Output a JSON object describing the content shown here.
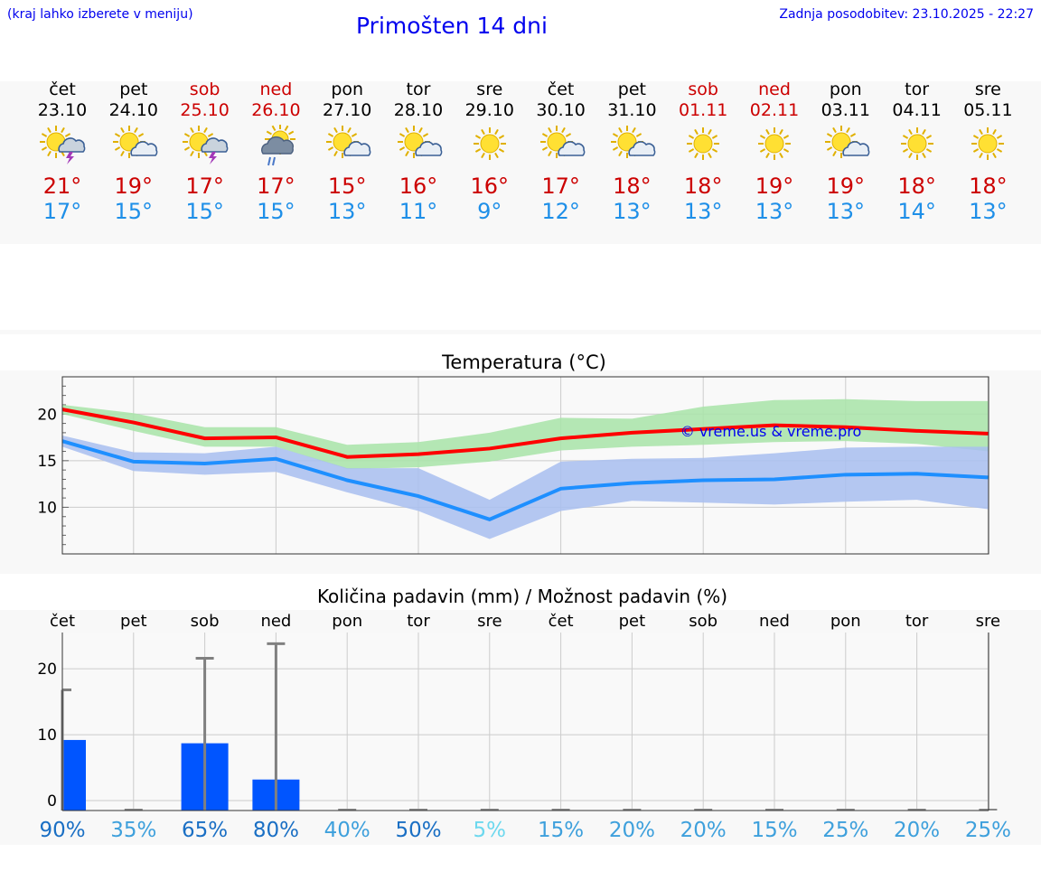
{
  "header": {
    "hint": "(kraj lahko izberete v meniju)",
    "title": "Primošten 14 dni",
    "updated": "Zadnja posodobitev: 23.10.2025 - 22:27"
  },
  "days": [
    {
      "name": "čet",
      "date": "23.10",
      "weekend": false,
      "icon": "sun-cloud-thunder-icon",
      "tmax": "21°",
      "tmin": "17°"
    },
    {
      "name": "pet",
      "date": "24.10",
      "weekend": false,
      "icon": "sun-cloud-icon",
      "tmax": "19°",
      "tmin": "15°"
    },
    {
      "name": "sob",
      "date": "25.10",
      "weekend": true,
      "icon": "sun-cloud-thunder-icon",
      "tmax": "17°",
      "tmin": "15°"
    },
    {
      "name": "ned",
      "date": "26.10",
      "weekend": true,
      "icon": "sun-cloud-rain-icon",
      "tmax": "17°",
      "tmin": "15°"
    },
    {
      "name": "pon",
      "date": "27.10",
      "weekend": false,
      "icon": "sun-cloud-icon",
      "tmax": "15°",
      "tmin": "13°"
    },
    {
      "name": "tor",
      "date": "28.10",
      "weekend": false,
      "icon": "sun-cloud-icon",
      "tmax": "16°",
      "tmin": "11°"
    },
    {
      "name": "sre",
      "date": "29.10",
      "weekend": false,
      "icon": "sun-icon",
      "tmax": "16°",
      "tmin": "9°"
    },
    {
      "name": "čet",
      "date": "30.10",
      "weekend": false,
      "icon": "sun-cloud-icon",
      "tmax": "17°",
      "tmin": "12°"
    },
    {
      "name": "pet",
      "date": "31.10",
      "weekend": false,
      "icon": "sun-cloud-icon",
      "tmax": "18°",
      "tmin": "13°"
    },
    {
      "name": "sob",
      "date": "01.11",
      "weekend": true,
      "icon": "sun-icon",
      "tmax": "18°",
      "tmin": "13°"
    },
    {
      "name": "ned",
      "date": "02.11",
      "weekend": true,
      "icon": "sun-icon",
      "tmax": "19°",
      "tmin": "13°"
    },
    {
      "name": "pon",
      "date": "03.11",
      "weekend": false,
      "icon": "sun-cloud-icon",
      "tmax": "19°",
      "tmin": "13°"
    },
    {
      "name": "tor",
      "date": "04.11",
      "weekend": false,
      "icon": "sun-icon",
      "tmax": "18°",
      "tmin": "14°"
    },
    {
      "name": "sre",
      "date": "05.11",
      "weekend": false,
      "icon": "sun-icon",
      "tmax": "18°",
      "tmin": "13°"
    }
  ],
  "colors": {
    "max_line": "#ff0000",
    "max_band": "#a8e4a8",
    "min_line": "#1e8fff",
    "min_band": "#a8bef0",
    "bar": "#0055ff",
    "whisker": "#808080",
    "weekend": "#cc0000",
    "watermark": "#0000ee"
  },
  "chart_data": [
    {
      "type": "line",
      "title": "Temperatura (°C)",
      "ylim": [
        5,
        24
      ],
      "yticks": [
        10,
        15,
        20
      ],
      "grid": true,
      "watermark": "© vreme.us & vreme.pro",
      "series": [
        {
          "values": [
            20.5,
            19.1,
            17.4,
            17.5,
            15.4,
            15.7,
            16.3,
            17.4,
            18.0,
            18.4,
            18.8,
            18.6,
            18.2,
            17.9
          ],
          "band_low": [
            20.0,
            18.2,
            16.5,
            16.5,
            14.1,
            14.3,
            14.9,
            16.1,
            16.5,
            16.7,
            17.0,
            17.1,
            16.8,
            16.0
          ],
          "band_high": [
            21.0,
            20.1,
            18.6,
            18.6,
            16.7,
            17.0,
            18.0,
            19.6,
            19.5,
            20.8,
            21.5,
            21.6,
            21.4,
            21.4
          ]
        },
        {
          "values": [
            17.1,
            14.9,
            14.7,
            15.2,
            12.9,
            11.2,
            8.7,
            12.0,
            12.6,
            12.9,
            13.0,
            13.5,
            13.6,
            13.2
          ],
          "band_low": [
            16.5,
            13.9,
            13.5,
            13.8,
            11.6,
            9.6,
            6.6,
            9.6,
            10.7,
            10.5,
            10.3,
            10.6,
            10.8,
            9.8
          ],
          "band_high": [
            17.7,
            15.9,
            15.8,
            16.5,
            14.2,
            14.2,
            10.8,
            14.9,
            15.2,
            15.3,
            15.8,
            16.4,
            16.5,
            16.5
          ]
        }
      ]
    },
    {
      "type": "bar",
      "title": "Količina padavin (mm) / Možnost padavin (%)",
      "categories": [
        "čet",
        "pet",
        "sob",
        "ned",
        "pon",
        "tor",
        "sre",
        "čet",
        "pet",
        "sob",
        "ned",
        "pon",
        "tor",
        "sre"
      ],
      "ylim": [
        -1.5,
        25.5
      ],
      "yticks": [
        0,
        10,
        20
      ],
      "grid": true,
      "values": [
        9.2,
        0,
        8.7,
        3.2,
        0,
        0,
        0,
        0,
        0,
        0,
        0,
        0,
        0,
        0
      ],
      "whisker_high": [
        16.8,
        0,
        21.6,
        23.8,
        0,
        0,
        0,
        0,
        0,
        0,
        0,
        0,
        0,
        0
      ],
      "probability": [
        "90%",
        "35%",
        "65%",
        "80%",
        "40%",
        "50%",
        "5%",
        "15%",
        "20%",
        "20%",
        "15%",
        "25%",
        "20%",
        "25%"
      ],
      "probability_colors": [
        "#1a6fc4",
        "#3ea0dc",
        "#1a6fc4",
        "#1a6fc4",
        "#3ea0dc",
        "#1a6fc4",
        "#6dd8ee",
        "#3ea0dc",
        "#3ea0dc",
        "#3ea0dc",
        "#3ea0dc",
        "#3ea0dc",
        "#3ea0dc",
        "#3ea0dc"
      ]
    }
  ]
}
